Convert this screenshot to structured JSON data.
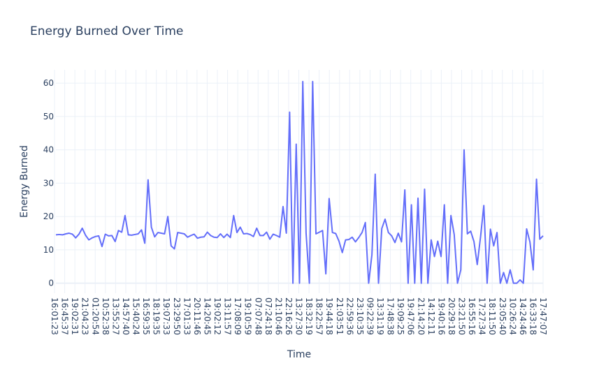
{
  "chart_data": {
    "type": "line",
    "title": "Energy Burned Over Time",
    "xlabel": "Time",
    "ylabel": "Energy Burned",
    "ylim": [
      -3,
      64
    ],
    "yticks": [
      0,
      10,
      20,
      30,
      40,
      50,
      60
    ],
    "line_color": "#636efa",
    "grid_color": "#ebf0f8",
    "x_tick_labels": [
      "16:01:23",
      "16:45:37",
      "19:02:31",
      "21:04:23",
      "01:20:54",
      "10:52:38",
      "13:55:27",
      "14:57:40",
      "15:40:24",
      "16:59:35",
      "18:19:35",
      "19:07:33",
      "23:29:50",
      "17:01:33",
      "20:11:46",
      "14:20:45",
      "19:02:12",
      "13:11:57",
      "17:08:09",
      "19:10:59",
      "07:07:48",
      "07:24:18",
      "21:10:46",
      "22:16:26",
      "13:27:30",
      "18:32:19",
      "18:22:57",
      "19:44:18",
      "21:03:51",
      "22:59:36",
      "23:10:35",
      "09:22:39",
      "13:31:19",
      "17:48:38",
      "19:09:25",
      "19:47:06",
      "21:14:20",
      "14:12:11",
      "19:40:16",
      "20:29:18",
      "23:21:50",
      "16:55:16",
      "17:27:34",
      "18:11:50",
      "23:05:40",
      "10:26:24",
      "14:24:46",
      "16:33:18",
      "17:47:07"
    ],
    "values": [
      14.5,
      14.6,
      14.5,
      14.8,
      15.0,
      14.7,
      13.6,
      14.7,
      16.5,
      14.4,
      13.0,
      13.6,
      14.0,
      14.2,
      11.0,
      14.7,
      14.2,
      14.3,
      12.5,
      15.8,
      15.3,
      20.3,
      14.5,
      14.4,
      14.6,
      14.8,
      16.0,
      12.0,
      31.0,
      16.8,
      13.9,
      15.2,
      15.0,
      14.8,
      20.0,
      11.2,
      10.3,
      15.2,
      15.0,
      14.8,
      13.8,
      14.3,
      14.7,
      13.5,
      13.8,
      13.9,
      15.3,
      14.3,
      13.8,
      13.7,
      14.8,
      13.7,
      14.7,
      13.7,
      20.3,
      15.2,
      16.8,
      14.8,
      14.9,
      14.6,
      14.0,
      16.5,
      14.3,
      14.3,
      15.3,
      13.2,
      14.7,
      14.3,
      13.8,
      23.0,
      15.0,
      51.3,
      0.0,
      41.7,
      0.0,
      60.5,
      15.0,
      0.0,
      60.5,
      14.8,
      15.3,
      15.8,
      2.8,
      25.4,
      15.2,
      14.9,
      12.6,
      9.2,
      13.0,
      13.1,
      13.8,
      12.4,
      13.7,
      15.2,
      18.2,
      0.0,
      8.5,
      32.7,
      0.0,
      16.4,
      19.2,
      15.2,
      14.2,
      12.2,
      15.0,
      12.4,
      28.0,
      0.0,
      23.5,
      0.0,
      25.5,
      0.0,
      28.2,
      0.0,
      13.0,
      8.0,
      12.6,
      8.0,
      23.5,
      0.0,
      20.3,
      14.6,
      0.0,
      4.0,
      40.0,
      14.8,
      15.6,
      12.5,
      5.6,
      13.9,
      23.3,
      0.0,
      16.2,
      11.2,
      15.2,
      0.0,
      3.2,
      0.0,
      4.0,
      0.0,
      0.0,
      1.0,
      0.0,
      16.3,
      12.4,
      4.0,
      31.2,
      13.2,
      14.2
    ]
  }
}
